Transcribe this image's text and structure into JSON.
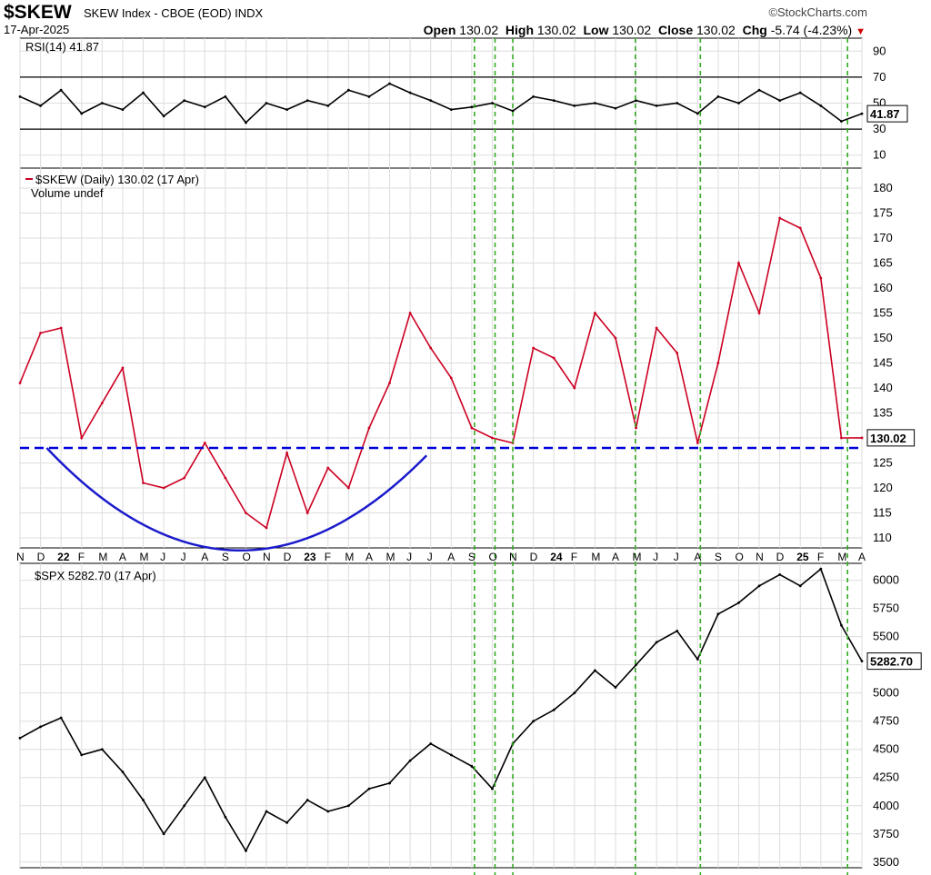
{
  "header": {
    "symbol": "$SKEW",
    "description": "SKEW Index - CBOE (EOD)  INDX",
    "brand": "©StockCharts.com",
    "date": "17-Apr-2025",
    "open_label": "Open",
    "open": "130.02",
    "high_label": "High",
    "high": "130.02",
    "low_label": "Low",
    "low": "130.02",
    "close_label": "Close",
    "close": "130.02",
    "chg_label": "Chg",
    "chg": "-5.74 (-4.23%)"
  },
  "colors": {
    "skew": "#cc0022",
    "spx": "#000000",
    "rsi": "#000000",
    "support": "#0000dd",
    "arc": "#1a1acc",
    "vlines": "#33aa22",
    "grid": "#dddddd"
  },
  "chart_data": [
    {
      "type": "line",
      "panel": "rsi",
      "legend": "RSI(14) 41.87",
      "last_label": "41.87",
      "ylim": [
        0,
        100
      ],
      "yticks": [
        10,
        30,
        50,
        70,
        90
      ],
      "reference_lines": [
        30,
        70
      ],
      "x": [
        "2021-11",
        "2021-12",
        "2022-01",
        "2022-02",
        "2022-03",
        "2022-04",
        "2022-05",
        "2022-06",
        "2022-07",
        "2022-08",
        "2022-09",
        "2022-10",
        "2022-11",
        "2022-12",
        "2023-01",
        "2023-02",
        "2023-03",
        "2023-04",
        "2023-05",
        "2023-06",
        "2023-07",
        "2023-08",
        "2023-09",
        "2023-10",
        "2023-11",
        "2023-12",
        "2024-01",
        "2024-02",
        "2024-03",
        "2024-04",
        "2024-05",
        "2024-06",
        "2024-07",
        "2024-08",
        "2024-09",
        "2024-10",
        "2024-11",
        "2024-12",
        "2025-01",
        "2025-02",
        "2025-03",
        "2025-04"
      ],
      "values": [
        55,
        48,
        60,
        42,
        50,
        45,
        58,
        40,
        52,
        47,
        55,
        35,
        50,
        45,
        52,
        48,
        60,
        55,
        65,
        58,
        52,
        45,
        47,
        50,
        44,
        55,
        52,
        48,
        50,
        46,
        52,
        48,
        50,
        42,
        55,
        50,
        60,
        52,
        58,
        48,
        36,
        41.87
      ]
    },
    {
      "type": "line",
      "panel": "price",
      "legend": "$SKEW (Daily) 130.02 (17 Apr)",
      "legend2": "Volume undef",
      "last_label": "130.02",
      "ylim": [
        108,
        184
      ],
      "yticks": [
        110,
        115,
        120,
        125,
        130,
        135,
        140,
        145,
        150,
        155,
        160,
        165,
        170,
        175,
        180
      ],
      "support_level": 128,
      "x": [
        "2021-11",
        "2021-12",
        "2022-01",
        "2022-02",
        "2022-03",
        "2022-04",
        "2022-05",
        "2022-06",
        "2022-07",
        "2022-08",
        "2022-09",
        "2022-10",
        "2022-11",
        "2022-12",
        "2023-01",
        "2023-02",
        "2023-03",
        "2023-04",
        "2023-05",
        "2023-06",
        "2023-07",
        "2023-08",
        "2023-09",
        "2023-10",
        "2023-11",
        "2023-12",
        "2024-01",
        "2024-02",
        "2024-03",
        "2024-04",
        "2024-05",
        "2024-06",
        "2024-07",
        "2024-08",
        "2024-09",
        "2024-10",
        "2024-11",
        "2024-12",
        "2025-01",
        "2025-02",
        "2025-03",
        "2025-04"
      ],
      "values": [
        141,
        151,
        152,
        130,
        137,
        144,
        121,
        120,
        122,
        129,
        122,
        115,
        112,
        127,
        115,
        124,
        120,
        132,
        141,
        155,
        148,
        142,
        132,
        130,
        129,
        148,
        146,
        140,
        155,
        150,
        132,
        152,
        147,
        129,
        145,
        165,
        155,
        174,
        172,
        162,
        130,
        130.02
      ],
      "xtick_labels": [
        "N",
        "D",
        "22",
        "F",
        "M",
        "A",
        "M",
        "J",
        "J",
        "A",
        "S",
        "O",
        "N",
        "D",
        "23",
        "F",
        "M",
        "A",
        "M",
        "J",
        "J",
        "A",
        "S",
        "O",
        "N",
        "D",
        "24",
        "F",
        "M",
        "A",
        "M",
        "J",
        "J",
        "A",
        "S",
        "O",
        "N",
        "D",
        "25",
        "F",
        "M",
        "A"
      ]
    },
    {
      "type": "line",
      "panel": "spx",
      "legend": "$SPX 5282.70 (17 Apr)",
      "last_label": "5282.70",
      "ylim": [
        3450,
        6150
      ],
      "yticks": [
        3500,
        3750,
        4000,
        4250,
        4500,
        4750,
        5000,
        5250,
        5500,
        5750,
        6000
      ],
      "x": [
        "2021-11",
        "2021-12",
        "2022-01",
        "2022-02",
        "2022-03",
        "2022-04",
        "2022-05",
        "2022-06",
        "2022-07",
        "2022-08",
        "2022-09",
        "2022-10",
        "2022-11",
        "2022-12",
        "2023-01",
        "2023-02",
        "2023-03",
        "2023-04",
        "2023-05",
        "2023-06",
        "2023-07",
        "2023-08",
        "2023-09",
        "2023-10",
        "2023-11",
        "2023-12",
        "2024-01",
        "2024-02",
        "2024-03",
        "2024-04",
        "2024-05",
        "2024-06",
        "2024-07",
        "2024-08",
        "2024-09",
        "2024-10",
        "2024-11",
        "2024-12",
        "2025-01",
        "2025-02",
        "2025-03",
        "2025-04"
      ],
      "values": [
        4600,
        4700,
        4780,
        4450,
        4500,
        4300,
        4050,
        3750,
        4000,
        4250,
        3900,
        3600,
        3950,
        3850,
        4050,
        3950,
        4000,
        4150,
        4200,
        4400,
        4550,
        4450,
        4350,
        4150,
        4550,
        4750,
        4850,
        5000,
        5200,
        5050,
        5250,
        5450,
        5550,
        5300,
        5700,
        5800,
        5950,
        6050,
        5950,
        6100,
        5600,
        5282.7
      ]
    },
    {
      "type": "annotations",
      "vertical_lines_dates": [
        "2023-09-05",
        "2023-10-05",
        "2023-11-01",
        "2024-04-30",
        "2024-08-05",
        "2025-03-10"
      ],
      "arc_start": "2021-12-10",
      "arc_end": "2023-06-25",
      "arc_bottom": 107.5
    }
  ]
}
